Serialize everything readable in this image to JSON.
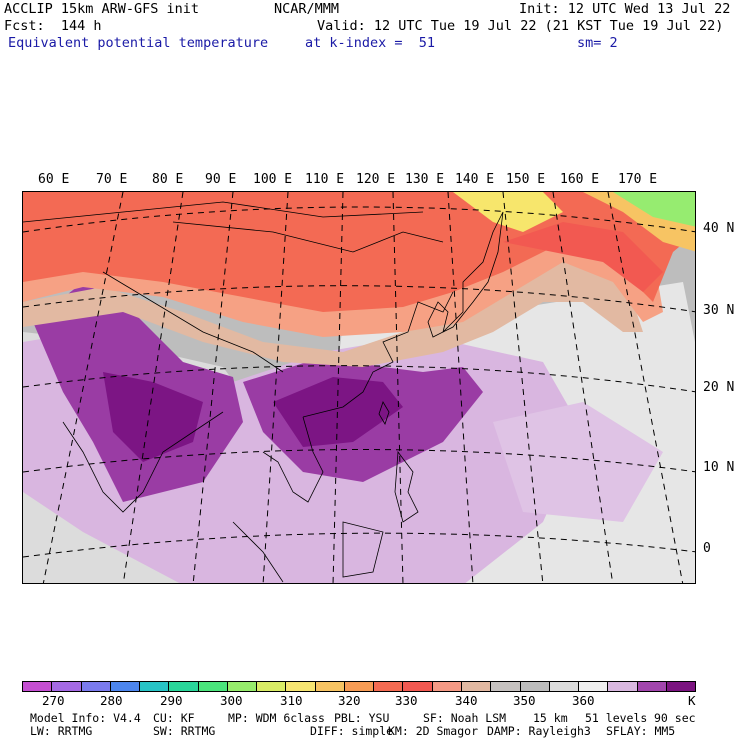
{
  "header": {
    "model_line": "ACCLIP 15km ARW-GFS init",
    "center": "NCAR/MMM",
    "init_line": "Init: 12 UTC Wed 13 Jul 22",
    "fcst_line": "Fcst:  144 h",
    "valid_line": "Valid: 12 UTC Tue 19 Jul 22 (21 KST Tue 19 Jul 22)",
    "field_name": "Equivalent potential temperature",
    "k_index_line": "at k-index =  51",
    "smooth_line": "sm= 2"
  },
  "map": {
    "projection": "lambert-conformal",
    "field": "equivalent-potential-temperature",
    "units": "K",
    "lon_labels": [
      "60 E",
      "70 E",
      "80 E",
      "90 E",
      "100 E",
      "110 E",
      "120 E",
      "130 E",
      "140 E",
      "150 E",
      "160 E",
      "170 E"
    ],
    "lat_labels": [
      "40 N",
      "30 N",
      "20 N",
      "10 N",
      "0"
    ],
    "colors": {
      "ocean_background": "#bdbdbd",
      "warm_north": "#f36a54",
      "mid_band": "#f6a184",
      "tan_band": "#e2b9a2",
      "light_purple": "#d9b6e0",
      "mid_purple": "#9a3ca4",
      "deep_purple": "#7c1584",
      "yellow_north": "#f7e66c",
      "green_north": "#96ec70"
    }
  },
  "colorbar": {
    "colors": [
      "#c54fd2",
      "#a56ae4",
      "#7b7bee",
      "#4d86ee",
      "#28c4c6",
      "#2ad69a",
      "#4be47c",
      "#97ec6c",
      "#d9ec66",
      "#f6e572",
      "#f7c463",
      "#f79c55",
      "#f46b52",
      "#f25951",
      "#f59a85",
      "#e2b9a2",
      "#c6c2c0",
      "#bdbdbd",
      "#dcdcdc",
      "#efefef",
      "#d9b8e0",
      "#a246ad",
      "#7b1480"
    ],
    "tick_labels": [
      "270",
      "280",
      "290",
      "300",
      "310",
      "320",
      "330",
      "340",
      "350",
      "360"
    ],
    "unit_label": "K"
  },
  "model_info": {
    "line1": [
      "Model Info: V4.4",
      "CU: KF",
      "MP: WDM 6class",
      "PBL: YSU",
      "SF: Noah LSM",
      "15 km",
      "51 levels",
      "90 sec"
    ],
    "line2": [
      "LW: RRTMG",
      "SW: RRTMG",
      "DIFF: simple",
      "KM: 2D Smagor",
      "DAMP: Rayleigh3",
      "SFLAY: MM5"
    ]
  }
}
